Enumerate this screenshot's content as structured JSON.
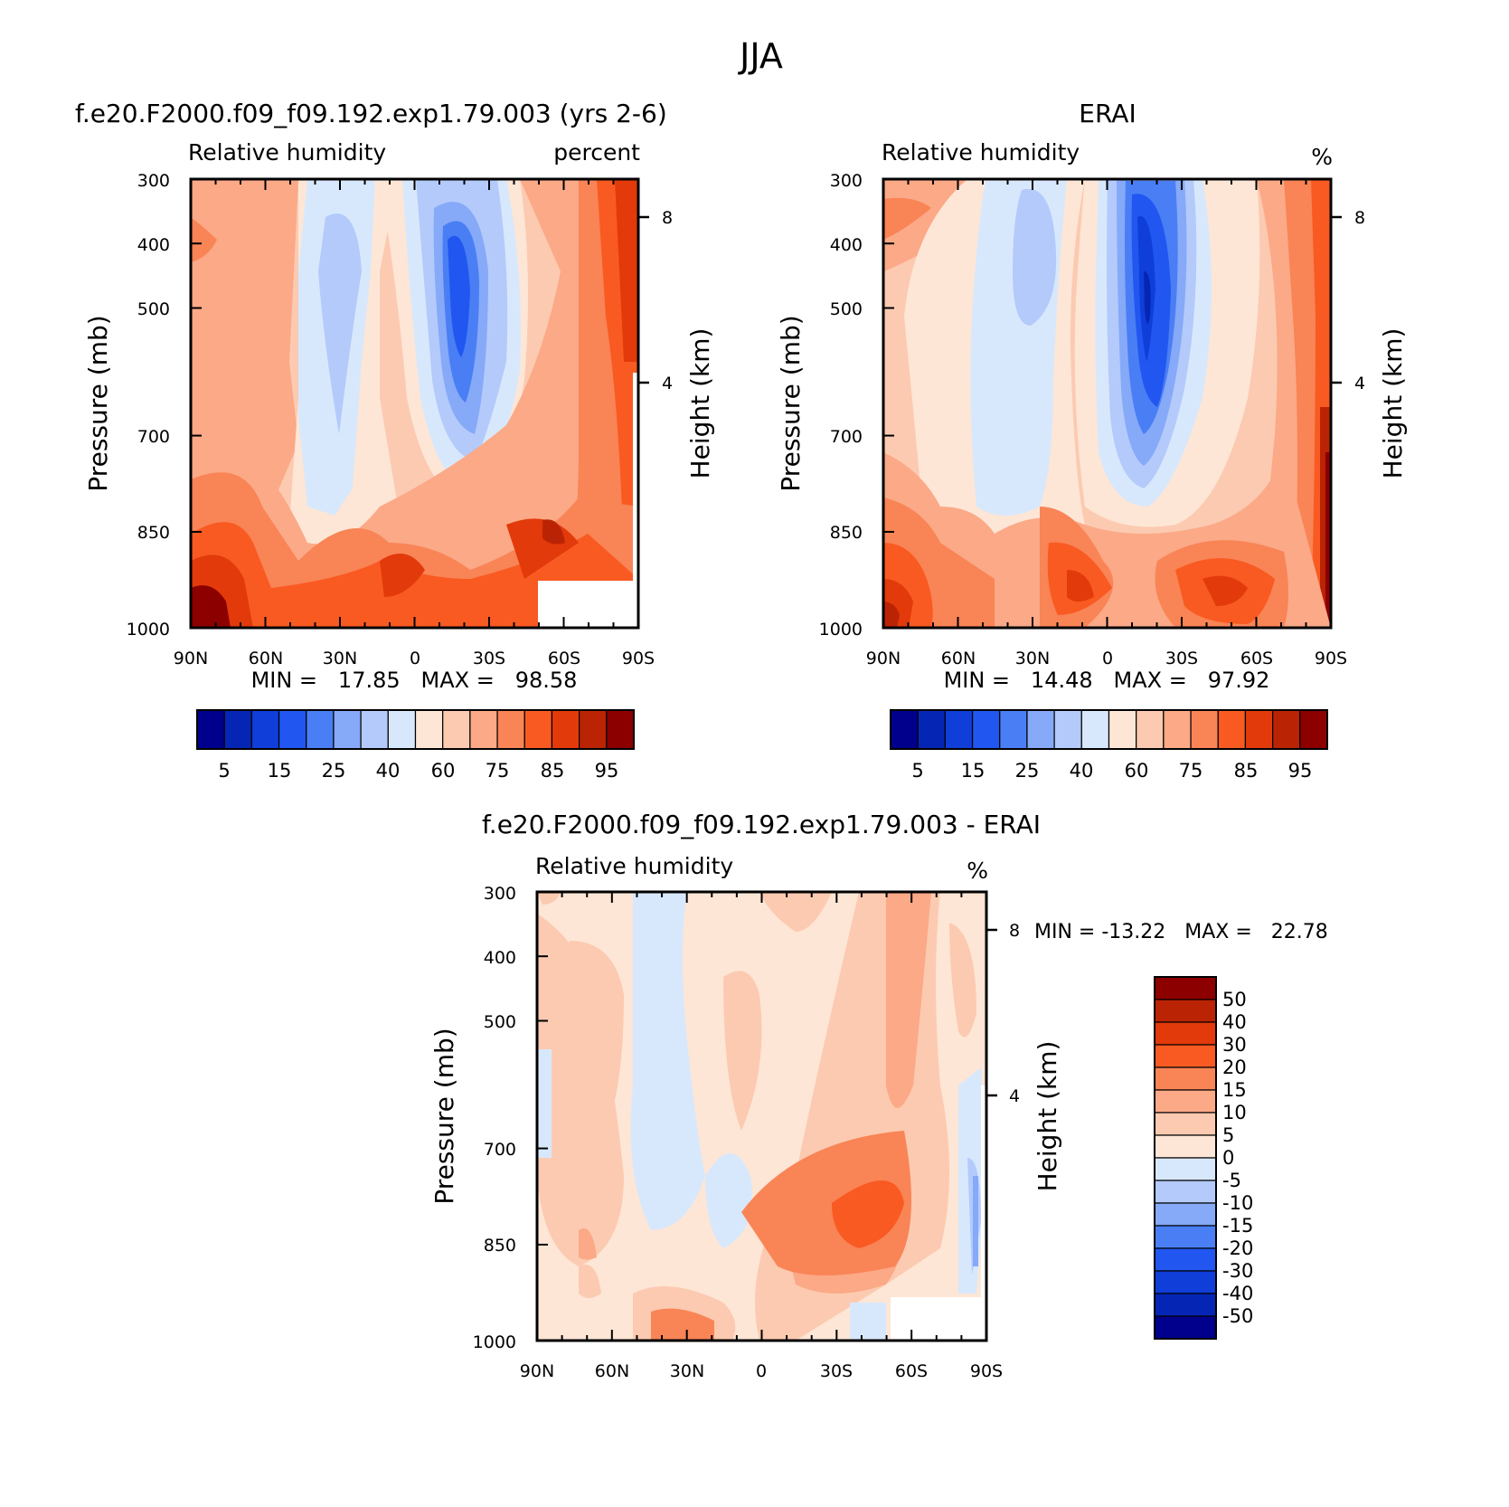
{
  "figure_title": "JJA",
  "chart_data": [
    {
      "type": "heatmap",
      "title": "f.e20.F2000.f09_f09.192.exp1.79.003 (yrs 2-6)",
      "subtitle_left": "Relative humidity",
      "subtitle_right": "percent",
      "ylabel": "Pressure (mb)",
      "ylabel_right": "Height (km)",
      "x_ticks": [
        "90N",
        "60N",
        "30N",
        "0",
        "30S",
        "60S",
        "90S"
      ],
      "y_ticks": [
        "300",
        "400",
        "500",
        "700",
        "850",
        "1000"
      ],
      "height_ticks": [
        "8",
        "4"
      ],
      "stats": "MIN =   17.85   MAX =   98.58",
      "min": 17.85,
      "max": 98.58,
      "colorbar_labels": [
        "5",
        "15",
        "25",
        "40",
        "60",
        "75",
        "85",
        "95"
      ],
      "colorbar_colors": [
        "#00008c",
        "#0526b4",
        "#0f3ed9",
        "#2157f0",
        "#4a7ef5",
        "#86a9f8",
        "#b3cafb",
        "#d8e8fc",
        "#fde6d6",
        "#fccab1",
        "#fba987",
        "#f98456",
        "#f95a22",
        "#e23a0a",
        "#bb2305",
        "#8c0000"
      ]
    },
    {
      "type": "heatmap",
      "title": "ERAI",
      "subtitle_left": "Relative humidity",
      "subtitle_right": "%",
      "ylabel": "Pressure (mb)",
      "ylabel_right": "Height (km)",
      "x_ticks": [
        "90N",
        "60N",
        "30N",
        "0",
        "30S",
        "60S",
        "90S"
      ],
      "y_ticks": [
        "300",
        "400",
        "500",
        "700",
        "850",
        "1000"
      ],
      "height_ticks": [
        "8",
        "4"
      ],
      "stats": "MIN =   14.48   MAX =   97.92",
      "min": 14.48,
      "max": 97.92,
      "colorbar_labels": [
        "5",
        "15",
        "25",
        "40",
        "60",
        "75",
        "85",
        "95"
      ],
      "colorbar_colors": [
        "#00008c",
        "#0526b4",
        "#0f3ed9",
        "#2157f0",
        "#4a7ef5",
        "#86a9f8",
        "#b3cafb",
        "#d8e8fc",
        "#fde6d6",
        "#fccab1",
        "#fba987",
        "#f98456",
        "#f95a22",
        "#e23a0a",
        "#bb2305",
        "#8c0000"
      ]
    },
    {
      "type": "heatmap",
      "title": "f.e20.F2000.f09_f09.192.exp1.79.003 - ERAI",
      "subtitle_left": "Relative humidity",
      "subtitle_right": "%",
      "ylabel": "Pressure (mb)",
      "ylabel_right": "Height (km)",
      "x_ticks": [
        "90N",
        "60N",
        "30N",
        "0",
        "30S",
        "60S",
        "90S"
      ],
      "y_ticks": [
        "300",
        "400",
        "500",
        "700",
        "850",
        "1000"
      ],
      "height_ticks": [
        "8",
        "4"
      ],
      "stats": "MIN = -13.22   MAX =   22.78",
      "min": -13.22,
      "max": 22.78,
      "colorbar_labels": [
        "50",
        "40",
        "30",
        "20",
        "15",
        "10",
        "5",
        "0",
        "-5",
        "-10",
        "-15",
        "-20",
        "-30",
        "-40",
        "-50"
      ],
      "colorbar_colors": [
        "#8c0000",
        "#bb2305",
        "#e23a0a",
        "#f95a22",
        "#f98456",
        "#fba987",
        "#fccab1",
        "#fde6d6",
        "#d8e8fc",
        "#b3cafb",
        "#86a9f8",
        "#4a7ef5",
        "#2157f0",
        "#0f3ed9",
        "#0526b4",
        "#00008c"
      ]
    }
  ]
}
